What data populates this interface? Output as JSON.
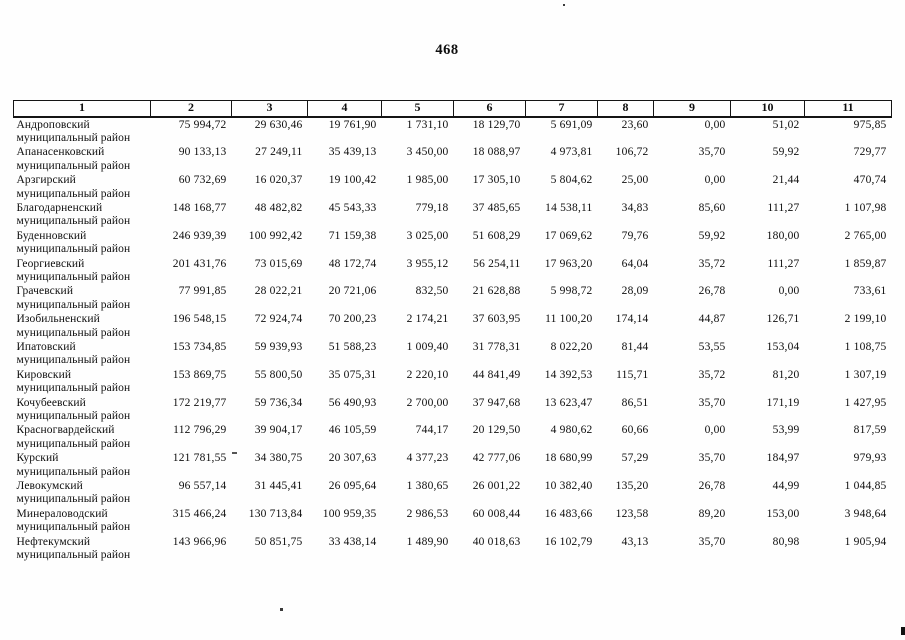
{
  "page": {
    "number": "468"
  },
  "table": {
    "column_headers": [
      "1",
      "2",
      "3",
      "4",
      "5",
      "6",
      "7",
      "8",
      "9",
      "10",
      "11"
    ],
    "row_name_suffix": "муниципальный район",
    "rows": [
      {
        "name": "Андроповский",
        "values": [
          "75 994,72",
          "29 630,46",
          "19 761,90",
          "1 731,10",
          "18 129,70",
          "5 691,09",
          "23,60",
          "0,00",
          "51,02",
          "975,85"
        ]
      },
      {
        "name": "Апанасенковский",
        "values": [
          "90 133,13",
          "27 249,11",
          "35 439,13",
          "3 450,00",
          "18 088,97",
          "4 973,81",
          "106,72",
          "35,70",
          "59,92",
          "729,77"
        ]
      },
      {
        "name": "Арзгирский",
        "values": [
          "60 732,69",
          "16 020,37",
          "19 100,42",
          "1 985,00",
          "17 305,10",
          "5 804,62",
          "25,00",
          "0,00",
          "21,44",
          "470,74"
        ]
      },
      {
        "name": "Благодарненский",
        "values": [
          "148 168,77",
          "48 482,82",
          "45 543,33",
          "779,18",
          "37 485,65",
          "14 538,11",
          "34,83",
          "85,60",
          "111,27",
          "1 107,98"
        ]
      },
      {
        "name": "Буденновский",
        "values": [
          "246 939,39",
          "100 992,42",
          "71 159,38",
          "3 025,00",
          "51 608,29",
          "17 069,62",
          "79,76",
          "59,92",
          "180,00",
          "2 765,00"
        ]
      },
      {
        "name": "Георгиевский",
        "values": [
          "201 431,76",
          "73 015,69",
          "48 172,74",
          "3 955,12",
          "56 254,11",
          "17 963,20",
          "64,04",
          "35,72",
          "111,27",
          "1 859,87"
        ]
      },
      {
        "name": "Грачевский",
        "values": [
          "77 991,85",
          "28 022,21",
          "20 721,06",
          "832,50",
          "21 628,88",
          "5 998,72",
          "28,09",
          "26,78",
          "0,00",
          "733,61"
        ]
      },
      {
        "name": "Изобильненский",
        "values": [
          "196 548,15",
          "72 924,74",
          "70 200,23",
          "2 174,21",
          "37 603,95",
          "11 100,20",
          "174,14",
          "44,87",
          "126,71",
          "2 199,10"
        ]
      },
      {
        "name": "Ипатовский",
        "values": [
          "153 734,85",
          "59 939,93",
          "51 588,23",
          "1 009,40",
          "31 778,31",
          "8 022,20",
          "81,44",
          "53,55",
          "153,04",
          "1 108,75"
        ]
      },
      {
        "name": "Кировский",
        "values": [
          "153 869,75",
          "55 800,50",
          "35 075,31",
          "2 220,10",
          "44 841,49",
          "14 392,53",
          "115,71",
          "35,72",
          "81,20",
          "1 307,19"
        ]
      },
      {
        "name": "Кочубеевский",
        "values": [
          "172 219,77",
          "59 736,34",
          "56 490,93",
          "2 700,00",
          "37 947,68",
          "13 623,47",
          "86,51",
          "35,70",
          "171,19",
          "1 427,95"
        ]
      },
      {
        "name": "Красногвардейский",
        "values": [
          "112 796,29",
          "39 904,17",
          "46 105,59",
          "744,17",
          "20 129,50",
          "4 980,62",
          "60,66",
          "0,00",
          "53,99",
          "817,59"
        ]
      },
      {
        "name": "Курский",
        "values": [
          "121 781,55",
          "34 380,75",
          "20 307,63",
          "4 377,23",
          "42 777,06",
          "18 680,99",
          "57,29",
          "35,70",
          "184,97",
          "979,93"
        ]
      },
      {
        "name": "Левокумский",
        "values": [
          "96 557,14",
          "31 445,41",
          "26 095,64",
          "1 380,65",
          "26 001,22",
          "10 382,40",
          "135,20",
          "26,78",
          "44,99",
          "1 044,85"
        ]
      },
      {
        "name": "Минераловодский",
        "values": [
          "315 466,24",
          "130 713,84",
          "100 959,35",
          "2 986,53",
          "60 008,44",
          "16 483,66",
          "123,58",
          "89,20",
          "153,00",
          "3 948,64"
        ]
      },
      {
        "name": "Нефтекумский",
        "values": [
          "143 966,96",
          "50 851,75",
          "33 438,14",
          "1 489,90",
          "40 018,63",
          "16 102,79",
          "43,13",
          "35,70",
          "80,98",
          "1 905,94"
        ]
      }
    ]
  }
}
